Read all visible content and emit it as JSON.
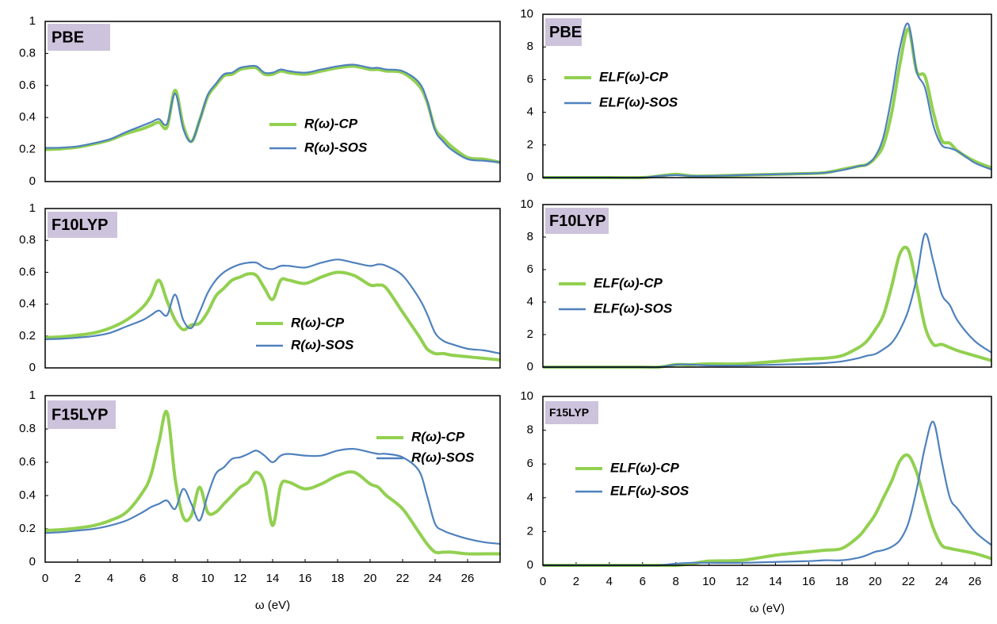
{
  "chart_data": [
    {
      "type": "line",
      "title": "PBE",
      "x": [
        0,
        1,
        2,
        3,
        4,
        5,
        6,
        6.5,
        7,
        7.5,
        8,
        8.5,
        9,
        9.5,
        10,
        10.5,
        11,
        11.5,
        12,
        12.5,
        13,
        13.5,
        14,
        14.5,
        15,
        16,
        17,
        18,
        19,
        20,
        20.5,
        21,
        22,
        23,
        23.5,
        24,
        24.5,
        25,
        26,
        27,
        28
      ],
      "series": [
        {
          "name": "R(ω)-CP",
          "color": "#92d050",
          "values": [
            0.2,
            0.205,
            0.215,
            0.235,
            0.26,
            0.3,
            0.33,
            0.35,
            0.37,
            0.34,
            0.57,
            0.35,
            0.25,
            0.38,
            0.53,
            0.6,
            0.66,
            0.67,
            0.7,
            0.71,
            0.71,
            0.67,
            0.67,
            0.69,
            0.68,
            0.67,
            0.69,
            0.71,
            0.72,
            0.7,
            0.7,
            0.69,
            0.68,
            0.6,
            0.5,
            0.33,
            0.27,
            0.22,
            0.15,
            0.14,
            0.12
          ]
        },
        {
          "name": "R(ω)-SOS",
          "color": "#4f81bd",
          "values": [
            0.21,
            0.212,
            0.22,
            0.24,
            0.265,
            0.31,
            0.35,
            0.37,
            0.39,
            0.36,
            0.55,
            0.33,
            0.25,
            0.38,
            0.54,
            0.61,
            0.67,
            0.68,
            0.71,
            0.72,
            0.72,
            0.68,
            0.68,
            0.7,
            0.69,
            0.68,
            0.7,
            0.72,
            0.73,
            0.71,
            0.71,
            0.7,
            0.69,
            0.62,
            0.51,
            0.32,
            0.25,
            0.2,
            0.14,
            0.13,
            0.12
          ]
        }
      ],
      "xlim": [
        0,
        28
      ],
      "ylim": [
        0,
        1
      ],
      "yticks": [
        0,
        0.2,
        0.4,
        0.6,
        0.8,
        1
      ]
    },
    {
      "type": "line",
      "title": "PBE",
      "x": [
        0,
        2,
        4,
        6,
        7,
        8,
        9,
        10,
        12,
        14,
        16,
        17,
        18,
        19,
        19.5,
        20,
        20.5,
        21,
        21.5,
        22,
        22.5,
        23,
        23.5,
        24,
        24.5,
        25,
        26,
        27
      ],
      "series": [
        {
          "name": "ELF(ω)-CP",
          "color": "#92d050",
          "values": [
            0,
            0,
            0,
            0,
            0.1,
            0.2,
            0.1,
            0.1,
            0.15,
            0.2,
            0.25,
            0.3,
            0.5,
            0.7,
            0.8,
            1.2,
            2.0,
            4.0,
            7.0,
            9.1,
            6.5,
            6.2,
            4.0,
            2.3,
            2.1,
            1.6,
            1.0,
            0.6
          ]
        },
        {
          "name": "ELF(ω)-SOS",
          "color": "#4f81bd",
          "values": [
            0,
            0,
            0,
            0,
            0.1,
            0.15,
            0.1,
            0.1,
            0.15,
            0.2,
            0.25,
            0.3,
            0.45,
            0.7,
            0.8,
            1.3,
            2.5,
            5.0,
            8.0,
            9.4,
            6.5,
            5.5,
            3.2,
            2.0,
            1.8,
            1.6,
            0.9,
            0.5
          ]
        }
      ],
      "xlim": [
        0,
        27
      ],
      "ylim": [
        0,
        10
      ],
      "yticks": [
        0,
        2,
        4,
        6,
        8,
        10
      ]
    },
    {
      "type": "line",
      "title": "F10LYP",
      "x": [
        0,
        1,
        2,
        3,
        4,
        5,
        6,
        6.5,
        7,
        7.5,
        8,
        8.5,
        9,
        9.5,
        10,
        10.5,
        11,
        11.5,
        12,
        12.5,
        13,
        13.5,
        14,
        14.5,
        15,
        16,
        17,
        18,
        19,
        20,
        20.5,
        21,
        22,
        23,
        23.5,
        24,
        24.5,
        25,
        26,
        27,
        28
      ],
      "series": [
        {
          "name": "R(ω)-CP",
          "color": "#92d050",
          "values": [
            0.19,
            0.195,
            0.205,
            0.22,
            0.25,
            0.3,
            0.38,
            0.45,
            0.55,
            0.42,
            0.3,
            0.24,
            0.27,
            0.28,
            0.35,
            0.45,
            0.5,
            0.55,
            0.57,
            0.59,
            0.58,
            0.5,
            0.43,
            0.55,
            0.55,
            0.53,
            0.57,
            0.6,
            0.58,
            0.52,
            0.52,
            0.5,
            0.35,
            0.2,
            0.12,
            0.09,
            0.09,
            0.08,
            0.07,
            0.06,
            0.05
          ]
        },
        {
          "name": "R(ω)-SOS",
          "color": "#4f81bd",
          "values": [
            0.18,
            0.183,
            0.19,
            0.2,
            0.22,
            0.26,
            0.3,
            0.33,
            0.36,
            0.33,
            0.46,
            0.3,
            0.25,
            0.35,
            0.47,
            0.55,
            0.6,
            0.63,
            0.65,
            0.66,
            0.66,
            0.63,
            0.62,
            0.64,
            0.64,
            0.63,
            0.66,
            0.68,
            0.66,
            0.64,
            0.65,
            0.64,
            0.58,
            0.44,
            0.34,
            0.22,
            0.17,
            0.15,
            0.12,
            0.11,
            0.09
          ]
        }
      ],
      "xlim": [
        0,
        28
      ],
      "ylim": [
        0,
        1
      ],
      "yticks": [
        0,
        0.2,
        0.4,
        0.6,
        0.8,
        1
      ]
    },
    {
      "type": "line",
      "title": "F10LYP",
      "x": [
        0,
        2,
        4,
        6,
        7,
        8,
        9,
        10,
        12,
        14,
        16,
        17,
        18,
        19,
        19.5,
        20,
        20.5,
        21,
        21.5,
        22,
        22.5,
        23,
        23.5,
        24,
        24.5,
        25,
        26,
        27
      ],
      "series": [
        {
          "name": "ELF(ω)-CP",
          "color": "#92d050",
          "values": [
            0,
            0,
            0,
            0,
            0,
            0.15,
            0.15,
            0.2,
            0.2,
            0.35,
            0.5,
            0.55,
            0.7,
            1.2,
            1.6,
            2.3,
            3.2,
            5.0,
            7.0,
            7.2,
            5.0,
            2.5,
            1.4,
            1.4,
            1.2,
            1.0,
            0.7,
            0.4
          ]
        },
        {
          "name": "ELF(ω)-SOS",
          "color": "#4f81bd",
          "values": [
            0,
            0,
            0,
            0,
            0,
            0.15,
            0.15,
            0.1,
            0.1,
            0.15,
            0.2,
            0.25,
            0.35,
            0.55,
            0.7,
            0.8,
            1.1,
            1.5,
            2.3,
            3.5,
            5.5,
            8.2,
            6.5,
            4.5,
            3.8,
            2.8,
            1.6,
            0.9
          ]
        }
      ],
      "xlim": [
        0,
        27
      ],
      "ylim": [
        0,
        10
      ],
      "yticks": [
        0,
        2,
        4,
        6,
        8,
        10
      ]
    },
    {
      "type": "line",
      "title": "F15LYP",
      "x": [
        0,
        1,
        2,
        3,
        4,
        5,
        6,
        6.5,
        7,
        7.5,
        8,
        8.5,
        9,
        9.5,
        10,
        10.5,
        11,
        11.5,
        12,
        12.5,
        13,
        13.5,
        14,
        14.5,
        15,
        16,
        17,
        18,
        19,
        20,
        20.5,
        21,
        22,
        23,
        23.5,
        24,
        24.5,
        25,
        26,
        27,
        28
      ],
      "series": [
        {
          "name": "R(ω)-CP",
          "color": "#92d050",
          "values": [
            0.19,
            0.195,
            0.205,
            0.22,
            0.25,
            0.3,
            0.42,
            0.52,
            0.72,
            0.9,
            0.5,
            0.27,
            0.28,
            0.45,
            0.3,
            0.3,
            0.35,
            0.4,
            0.45,
            0.48,
            0.54,
            0.47,
            0.22,
            0.46,
            0.48,
            0.44,
            0.47,
            0.52,
            0.54,
            0.47,
            0.45,
            0.4,
            0.32,
            0.18,
            0.11,
            0.06,
            0.06,
            0.06,
            0.05,
            0.05,
            0.05
          ]
        },
        {
          "name": "R(ω)-SOS",
          "color": "#4f81bd",
          "values": [
            0.175,
            0.18,
            0.19,
            0.2,
            0.22,
            0.25,
            0.3,
            0.33,
            0.35,
            0.37,
            0.32,
            0.44,
            0.35,
            0.25,
            0.4,
            0.53,
            0.57,
            0.62,
            0.63,
            0.65,
            0.67,
            0.64,
            0.6,
            0.64,
            0.65,
            0.64,
            0.64,
            0.67,
            0.68,
            0.66,
            0.65,
            0.65,
            0.63,
            0.55,
            0.4,
            0.23,
            0.19,
            0.17,
            0.14,
            0.12,
            0.11
          ]
        }
      ],
      "xlim": [
        0,
        28
      ],
      "ylim": [
        0,
        1
      ],
      "yticks": [
        0,
        0.2,
        0.4,
        0.6,
        0.8,
        1
      ],
      "xticks": [
        0,
        2,
        4,
        6,
        8,
        10,
        12,
        14,
        16,
        18,
        20,
        22,
        24,
        26
      ],
      "x_label": "ω (eV)"
    },
    {
      "type": "line",
      "title": "F15LYP",
      "x": [
        0,
        2,
        4,
        6,
        7,
        8,
        9,
        10,
        12,
        14,
        16,
        17,
        18,
        19,
        19.5,
        20,
        20.5,
        21,
        21.5,
        22,
        22.5,
        23,
        23.5,
        24,
        24.5,
        25,
        26,
        27
      ],
      "series": [
        {
          "name": "ELF(ω)-CP",
          "color": "#92d050",
          "values": [
            0,
            0,
            0,
            0,
            0,
            0,
            0.1,
            0.25,
            0.3,
            0.6,
            0.8,
            0.9,
            1.0,
            1.7,
            2.3,
            3.0,
            4.0,
            5.0,
            6.2,
            6.5,
            5.5,
            3.8,
            2.2,
            1.2,
            1.0,
            0.9,
            0.7,
            0.4
          ]
        },
        {
          "name": "ELF(ω)-SOS",
          "color": "#4f81bd",
          "values": [
            0,
            0,
            0,
            0,
            0,
            0.1,
            0.15,
            0.15,
            0.15,
            0.2,
            0.25,
            0.3,
            0.3,
            0.45,
            0.6,
            0.8,
            0.9,
            1.1,
            1.5,
            2.5,
            4.5,
            7.0,
            8.5,
            6.2,
            4.0,
            3.3,
            2.0,
            1.2
          ]
        }
      ],
      "xlim": [
        0,
        27
      ],
      "ylim": [
        0,
        10
      ],
      "yticks": [
        0,
        2,
        4,
        6,
        8,
        10
      ],
      "xticks": [
        0,
        2,
        4,
        6,
        8,
        10,
        12,
        14,
        16,
        18,
        20,
        22,
        24,
        26
      ],
      "x_label": "ω (eV)"
    }
  ]
}
